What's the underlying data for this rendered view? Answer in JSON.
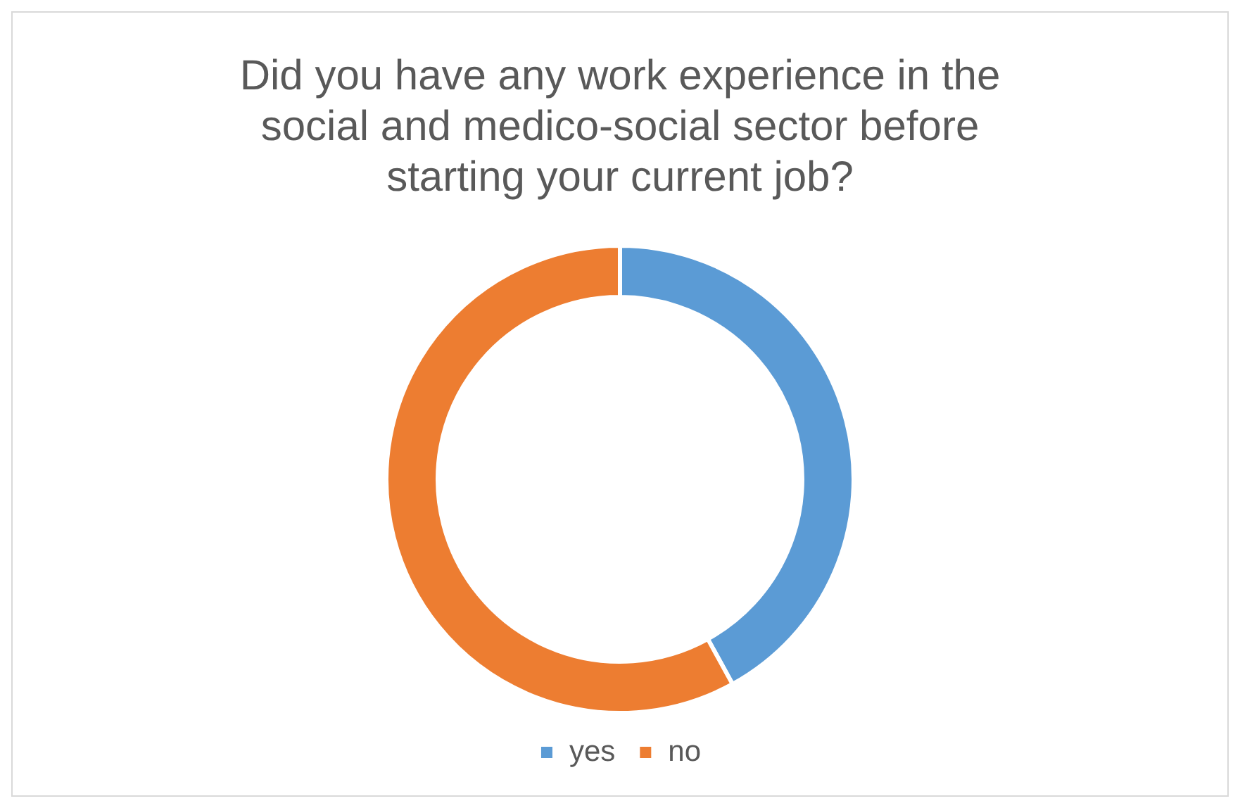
{
  "chart_data": {
    "type": "donut",
    "title": "Did you have any work experience in the social and medico-social sector before starting your current job?",
    "categories": [
      "yes",
      "no"
    ],
    "values": [
      42,
      58
    ],
    "colors": [
      "#5b9bd5",
      "#ed7d31"
    ],
    "legend": "bottom"
  }
}
